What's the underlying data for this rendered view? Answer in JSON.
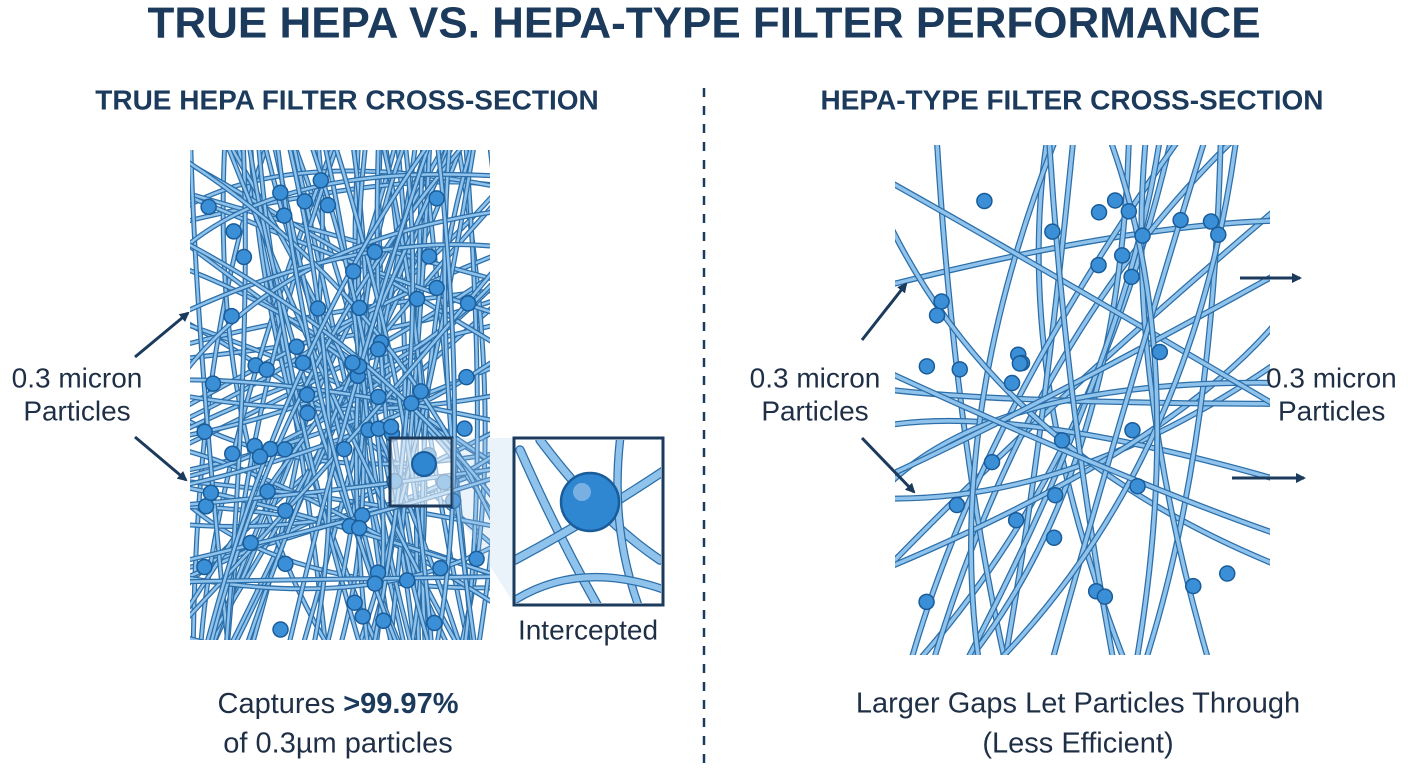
{
  "header": {
    "title": "TRUE HEPA VS. HEPA-TYPE FILTER PERFORMANCE"
  },
  "panels": [
    {
      "heading": "TRUE HEPA FILTER CROSS-SECTION",
      "particle_label": [
        "0.3 micron",
        "Particles"
      ],
      "inset_label": "Intercepted",
      "caption": {
        "prefix": "Captures",
        "highlight": ">99.97%",
        "line2": "of 0.3µm particles"
      }
    },
    {
      "heading": "HEPA-TYPE FILTER CROSS-SECTION",
      "particle_label": [
        "0.3 micron",
        "Particles"
      ],
      "exit_label": [
        "0.3 micron",
        "Particles"
      ],
      "caption": {
        "line1": "Larger Gaps Let Particles Through",
        "line2": "(Less Efficient)"
      }
    }
  ]
}
